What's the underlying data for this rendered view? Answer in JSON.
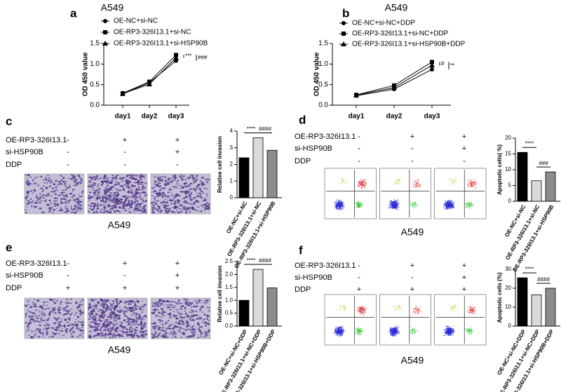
{
  "chart_data": [
    {
      "panel": "a",
      "type": "line",
      "title": "A549",
      "y_label": "OD 450 value",
      "categories": [
        "day1",
        "day2",
        "day3"
      ],
      "series": [
        {
          "name": "OE-NC+si-NC",
          "color": "#000000",
          "marker": "circle",
          "values": [
            0.27,
            0.55,
            1.08
          ]
        },
        {
          "name": "OE-RP3-326I13.1+si-NC",
          "color": "#000000",
          "marker": "square",
          "values": [
            0.29,
            0.57,
            1.22
          ]
        },
        {
          "name": "OE-RP3-326I13.1+si-HSP90B",
          "color": "#000000",
          "marker": "triangle",
          "values": [
            0.28,
            0.51,
            1.15
          ]
        }
      ],
      "ylim": [
        0,
        1.5
      ],
      "yticks": [
        {
          "value": 0,
          "label": "0.0"
        },
        0.5,
        {
          "value": 1,
          "label": "1.0"
        },
        1.5
      ],
      "annotations": [
        "***",
        "###"
      ]
    },
    {
      "panel": "b",
      "type": "line",
      "title": "A549",
      "y_label": "OD 450 value",
      "categories": [
        "day1",
        "day2",
        "day3"
      ],
      "series": [
        {
          "name": "OE-NC+si-NC+DDP",
          "color": "#000000",
          "marker": "circle",
          "values": [
            0.23,
            0.39,
            0.87
          ]
        },
        {
          "name": "OE-RP3-326I13.1+si-NC+DDP",
          "color": "#000000",
          "marker": "square",
          "values": [
            0.25,
            0.48,
            1.05
          ]
        },
        {
          "name": "OE-RP3-326I13.1+si-HSP90B+DDP",
          "color": "#000000",
          "marker": "triangle",
          "values": [
            0.24,
            0.43,
            0.97
          ]
        }
      ],
      "ylim": [
        0,
        1.5
      ],
      "yticks": [
        {
          "value": 0,
          "label": "0.0"
        },
        0.5,
        {
          "value": 1,
          "label": "1.0"
        },
        1.5
      ],
      "annotations": [
        "#",
        "**"
      ]
    },
    {
      "panel": "c",
      "type": "bar",
      "y_label": "Relative cell invasion",
      "categories": [
        "OE-NC+si-NC",
        "OE-RP3-326I13.1+si-NC",
        "OE-RP3-326I13.1+si-HSP90B"
      ],
      "values": [
        2.4,
        3.6,
        2.85
      ],
      "colors": [
        "#000000",
        "#d9d9d9",
        "#8c8c8c"
      ],
      "ylim": [
        0,
        4
      ],
      "yticks": [
        0,
        1,
        2,
        3,
        4
      ],
      "annotations": [
        "****",
        "####"
      ]
    },
    {
      "panel": "d",
      "type": "bar",
      "y_label": "Apoptotic cells( %)",
      "categories": [
        "OE-NC+si-NC",
        "OE-RP3-326I13.1+si-NC",
        "OE-RP3-326I13.1+si-HSP90B"
      ],
      "values": [
        15.5,
        6.5,
        9.3
      ],
      "colors": [
        "#000000",
        "#d9d9d9",
        "#8c8c8c"
      ],
      "ylim": [
        0,
        20
      ],
      "yticks": [
        0,
        5,
        10,
        15,
        20
      ],
      "annotations": [
        "****",
        "###"
      ]
    },
    {
      "panel": "e",
      "type": "bar",
      "y_label": "Relative cell invasion",
      "categories": [
        "OE-NC+si-NC+DDP",
        "OE-RP3-326I13.1+si-NC+DDP",
        "OE-RP3-326I13.1+si-HSP90B+DDP"
      ],
      "values": [
        1.0,
        2.2,
        1.48
      ],
      "colors": [
        "#000000",
        "#d9d9d9",
        "#8c8c8c"
      ],
      "ylim": [
        0,
        2.5
      ],
      "yticks": [
        {
          "value": 0,
          "label": "0.0"
        },
        0.5,
        {
          "value": 1,
          "label": "1.0"
        },
        1.5,
        {
          "value": 2,
          "label": "2.0"
        },
        2.5
      ],
      "annotations": [
        "****",
        "####"
      ]
    },
    {
      "panel": "f",
      "type": "bar",
      "y_label": "Apoptotic cells (%)",
      "categories": [
        "OE-NC+si-NC+DDP",
        "OE-RP3-326I13.1+si-NC+DDP",
        "OE-RP3-326I13.1+si-HSP90B+DDP"
      ],
      "values": [
        25.5,
        16.5,
        20
      ],
      "colors": [
        "#000000",
        "#d9d9d9",
        "#8c8c8c"
      ],
      "ylim": [
        0,
        30
      ],
      "yticks": [
        0,
        10,
        20,
        30
      ],
      "annotations": [
        "****",
        "####"
      ]
    }
  ],
  "experiments": [
    {
      "image": "invasion",
      "caption": "A549",
      "conditions": [
        {
          "name": "OE-RP3-326I13.1",
          "marks": [
            "-",
            "+",
            "+"
          ]
        },
        {
          "name": "si-HSP90B",
          "marks": [
            "-",
            "-",
            "+"
          ]
        },
        {
          "name": "DDP",
          "marks": [
            "-",
            "-",
            "-"
          ]
        }
      ]
    },
    {
      "image": "flow",
      "caption": "A549",
      "conditions": [
        {
          "name": "OE-RP3-326I13.1",
          "marks": [
            "-",
            "+",
            "+"
          ]
        },
        {
          "name": "si-HSP90B",
          "marks": [
            "-",
            "-",
            "+"
          ]
        },
        {
          "name": "DDP",
          "marks": [
            "-",
            "-",
            "-"
          ]
        }
      ]
    },
    {
      "image": "invasion",
      "caption": "A549",
      "conditions": [
        {
          "name": "OE-RP3-326I13.1",
          "marks": [
            "-",
            "+",
            "+"
          ]
        },
        {
          "name": "si-HSP90B",
          "marks": [
            "-",
            "-",
            "+"
          ]
        },
        {
          "name": "DDP",
          "marks": [
            "+",
            "+",
            "+"
          ]
        }
      ]
    },
    {
      "image": "flow",
      "caption": "A549",
      "conditions": [
        {
          "name": "OE-RP3-326I13.1",
          "marks": [
            "-",
            "+",
            "+"
          ]
        },
        {
          "name": "si-HSP90B",
          "marks": [
            "-",
            "-",
            "+"
          ]
        },
        {
          "name": "DDP",
          "marks": [
            "+",
            "+",
            "+"
          ]
        }
      ]
    }
  ]
}
